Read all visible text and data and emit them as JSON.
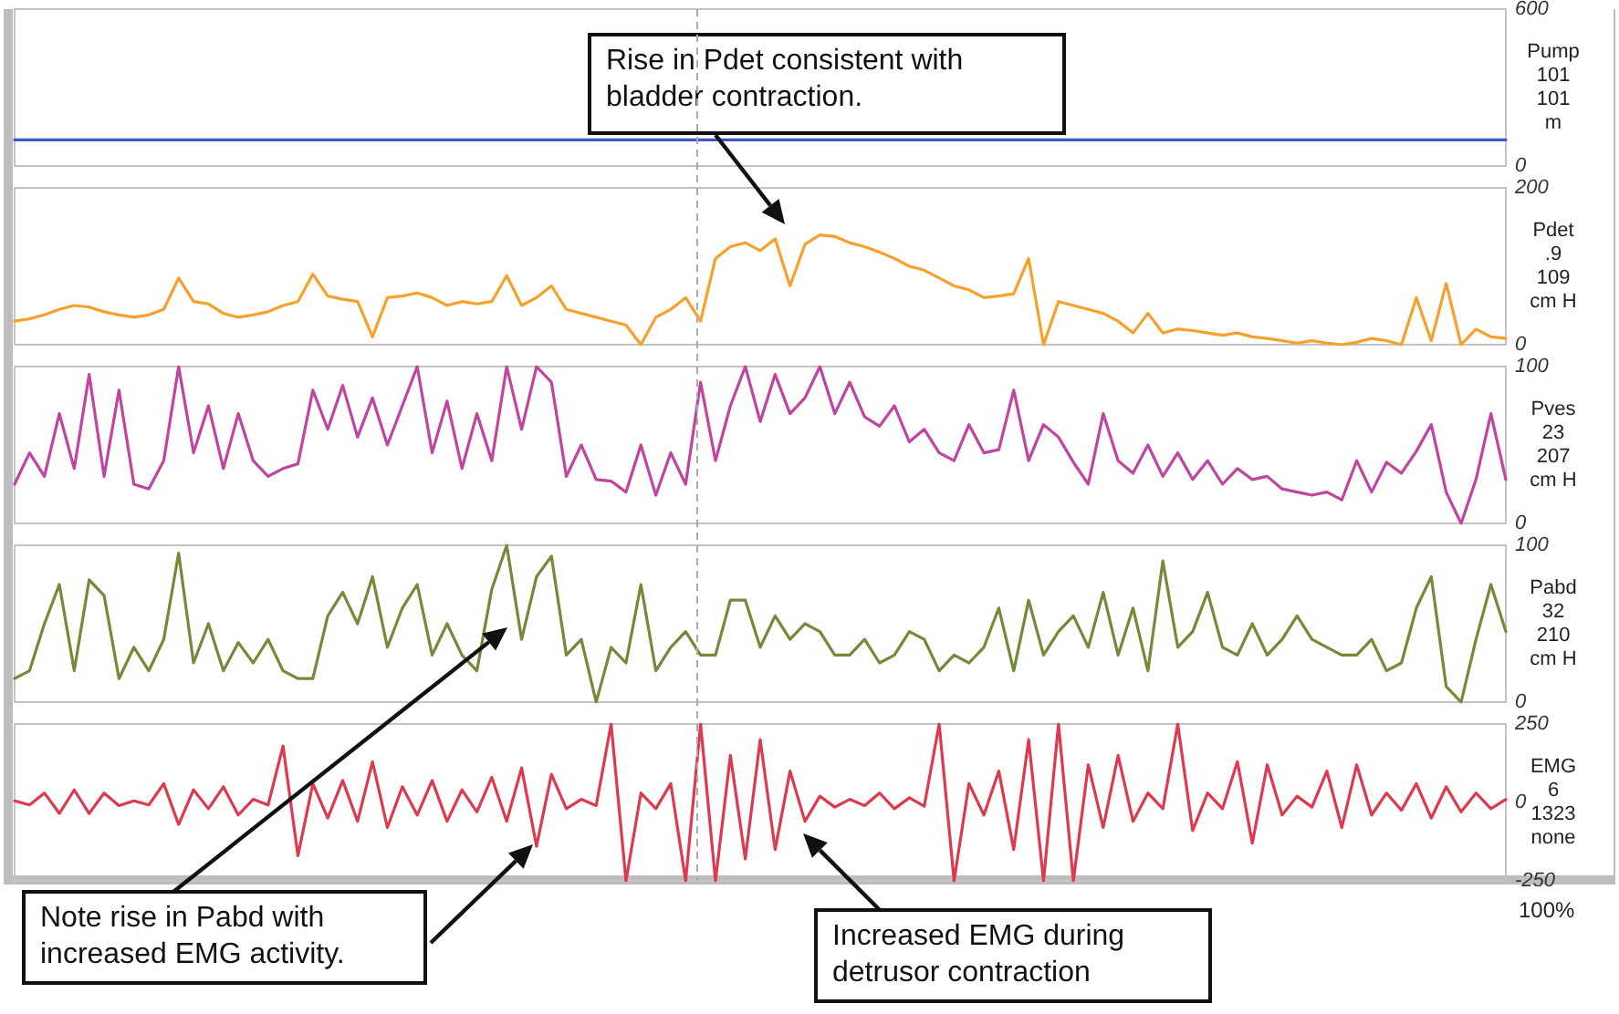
{
  "chart_data": [
    {
      "type": "line",
      "categories": [
        null,
        null,
        null,
        null,
        null,
        null,
        null,
        null,
        null,
        null,
        null,
        null,
        null,
        null,
        null,
        null,
        null,
        null,
        null,
        null,
        null,
        null,
        null,
        null,
        null,
        null,
        null,
        null,
        null,
        null,
        null,
        null,
        null,
        null,
        null,
        null,
        null,
        null,
        null,
        null,
        null,
        null,
        null,
        null,
        null,
        null,
        null,
        null,
        null,
        null,
        null,
        null,
        null,
        null,
        null,
        null,
        null,
        null,
        null,
        null,
        null,
        null,
        null,
        null,
        null,
        null,
        null,
        null,
        null,
        null,
        null,
        null,
        null,
        null,
        null,
        null,
        null,
        null,
        null,
        null,
        null,
        null,
        null,
        null,
        null,
        null,
        null,
        null,
        null,
        null,
        null,
        null,
        null,
        null,
        null,
        null,
        null,
        null,
        null,
        null,
        null
      ],
      "values": [
        100,
        100,
        100,
        100,
        100,
        100,
        100,
        100,
        100,
        100,
        100,
        100,
        100,
        100,
        100,
        100,
        100,
        100,
        100,
        100,
        100,
        100,
        100,
        100,
        100,
        100,
        100,
        100,
        100,
        100,
        100,
        100,
        100,
        100,
        100,
        100,
        100,
        100,
        100,
        100,
        100,
        100,
        100,
        100,
        100,
        100,
        100,
        100,
        100,
        100,
        100,
        100,
        100,
        100,
        100,
        100,
        100,
        100,
        100,
        100,
        100,
        100,
        100,
        100,
        100,
        100,
        100,
        100,
        100,
        100,
        100,
        100,
        100,
        100,
        100,
        100,
        100,
        100,
        100,
        100,
        100,
        100,
        100,
        100,
        100,
        100,
        100,
        100,
        100,
        100,
        100,
        100,
        100,
        100,
        100,
        100,
        100,
        100,
        100,
        100,
        100
      ],
      "color": "#3b57c4",
      "ylim": [
        0,
        600
      ],
      "yticks": [
        0,
        600
      ],
      "ylabel": "Pump\n101\n101\nm",
      "tick_labels": "y",
      "marker": "none",
      "line_style": "solid"
    },
    {
      "type": "line",
      "categories": [
        null,
        null,
        null,
        null,
        null,
        null,
        null,
        null,
        null,
        null,
        null,
        null,
        null,
        null,
        null,
        null,
        null,
        null,
        null,
        null,
        null,
        null,
        null,
        null,
        null,
        null,
        null,
        null,
        null,
        null,
        null,
        null,
        null,
        null,
        null,
        null,
        null,
        null,
        null,
        null,
        null,
        null,
        null,
        null,
        null,
        null,
        null,
        null,
        null,
        null,
        null,
        null,
        null,
        null,
        null,
        null,
        null,
        null,
        null,
        null,
        null,
        null,
        null,
        null,
        null,
        null,
        null,
        null,
        null,
        null,
        null,
        null,
        null,
        null,
        null,
        null,
        null,
        null,
        null,
        null,
        null,
        null,
        null,
        null,
        null,
        null,
        null,
        null,
        null,
        null,
        null,
        null,
        null,
        null,
        null,
        null,
        null,
        null,
        null,
        null,
        null
      ],
      "values": [
        30,
        33,
        38,
        45,
        50,
        48,
        42,
        38,
        35,
        38,
        45,
        85,
        55,
        52,
        40,
        35,
        38,
        42,
        50,
        55,
        90,
        62,
        58,
        55,
        10,
        60,
        62,
        66,
        60,
        50,
        55,
        52,
        55,
        88,
        50,
        60,
        75,
        45,
        40,
        35,
        30,
        25,
        0,
        35,
        45,
        60,
        30,
        110,
        125,
        130,
        120,
        135,
        75,
        128,
        140,
        138,
        130,
        125,
        118,
        110,
        100,
        95,
        85,
        75,
        70,
        60,
        62,
        65,
        110,
        0,
        55,
        50,
        45,
        40,
        30,
        15,
        40,
        15,
        20,
        18,
        15,
        12,
        15,
        10,
        8,
        5,
        2,
        5,
        2,
        0,
        3,
        8,
        5,
        0,
        60,
        5,
        78,
        0,
        20,
        10,
        8
      ],
      "color": "#f7a02c",
      "ylim": [
        0,
        200
      ],
      "yticks": [
        0,
        200
      ],
      "ylabel": "Pdet\n.9\n109\ncm H",
      "tick_labels": "y",
      "marker": "none",
      "line_style": "solid",
      "annotations": [
        "Rise in Pdet consistent with bladder contraction."
      ]
    },
    {
      "type": "line",
      "categories": [
        null,
        null,
        null,
        null,
        null,
        null,
        null,
        null,
        null,
        null,
        null,
        null,
        null,
        null,
        null,
        null,
        null,
        null,
        null,
        null,
        null,
        null,
        null,
        null,
        null,
        null,
        null,
        null,
        null,
        null,
        null,
        null,
        null,
        null,
        null,
        null,
        null,
        null,
        null,
        null,
        null,
        null,
        null,
        null,
        null,
        null,
        null,
        null,
        null,
        null,
        null,
        null,
        null,
        null,
        null,
        null,
        null,
        null,
        null,
        null,
        null,
        null,
        null,
        null,
        null,
        null,
        null,
        null,
        null,
        null,
        null,
        null,
        null,
        null,
        null,
        null,
        null,
        null,
        null,
        null,
        null,
        null,
        null,
        null,
        null,
        null,
        null,
        null,
        null,
        null,
        null,
        null,
        null,
        null,
        null,
        null,
        null,
        null,
        null,
        null,
        null
      ],
      "values": [
        25,
        45,
        30,
        70,
        35,
        95,
        30,
        85,
        25,
        22,
        40,
        100,
        45,
        75,
        35,
        70,
        40,
        30,
        35,
        38,
        85,
        60,
        88,
        55,
        80,
        50,
        75,
        100,
        45,
        78,
        35,
        70,
        40,
        100,
        60,
        100,
        90,
        30,
        50,
        28,
        27,
        20,
        50,
        18,
        45,
        25,
        90,
        40,
        75,
        100,
        65,
        95,
        70,
        80,
        100,
        70,
        90,
        68,
        62,
        75,
        52,
        60,
        45,
        40,
        63,
        45,
        47,
        85,
        40,
        63,
        55,
        39,
        25,
        70,
        40,
        32,
        50,
        30,
        45,
        28,
        40,
        25,
        35,
        28,
        30,
        22,
        20,
        18,
        20,
        15,
        40,
        20,
        39,
        32,
        46,
        63,
        20,
        0,
        28,
        70,
        28
      ],
      "color": "#c044a0",
      "ylim": [
        0,
        100
      ],
      "yticks": [
        0,
        100
      ],
      "ylabel": "Pves\n23\n207\ncm H",
      "tick_labels": "y",
      "marker": "none",
      "line_style": "solid"
    },
    {
      "type": "line",
      "categories": [
        null,
        null,
        null,
        null,
        null,
        null,
        null,
        null,
        null,
        null,
        null,
        null,
        null,
        null,
        null,
        null,
        null,
        null,
        null,
        null,
        null,
        null,
        null,
        null,
        null,
        null,
        null,
        null,
        null,
        null,
        null,
        null,
        null,
        null,
        null,
        null,
        null,
        null,
        null,
        null,
        null,
        null,
        null,
        null,
        null,
        null,
        null,
        null,
        null,
        null,
        null,
        null,
        null,
        null,
        null,
        null,
        null,
        null,
        null,
        null,
        null,
        null,
        null,
        null,
        null,
        null,
        null,
        null,
        null,
        null,
        null,
        null,
        null,
        null,
        null,
        null,
        null,
        null,
        null,
        null,
        null,
        null,
        null,
        null,
        null,
        null,
        null,
        null,
        null,
        null,
        null,
        null,
        null,
        null,
        null,
        null,
        null,
        null,
        null,
        null,
        null
      ],
      "values": [
        15,
        20,
        50,
        75,
        20,
        78,
        68,
        15,
        35,
        20,
        40,
        95,
        25,
        50,
        20,
        38,
        25,
        40,
        20,
        15,
        15,
        55,
        70,
        50,
        80,
        35,
        60,
        75,
        30,
        50,
        30,
        20,
        72,
        100,
        40,
        80,
        93,
        30,
        40,
        0,
        35,
        25,
        75,
        20,
        35,
        45,
        30,
        30,
        65,
        65,
        35,
        55,
        40,
        50,
        45,
        30,
        30,
        40,
        25,
        30,
        45,
        40,
        20,
        30,
        25,
        35,
        60,
        20,
        65,
        30,
        45,
        55,
        35,
        70,
        30,
        60,
        20,
        90,
        35,
        45,
        70,
        35,
        30,
        50,
        30,
        40,
        55,
        40,
        35,
        30,
        30,
        40,
        20,
        25,
        60,
        80,
        10,
        0,
        40,
        75,
        45
      ],
      "color": "#748a38",
      "ylim": [
        0,
        100
      ],
      "yticks": [
        0,
        100
      ],
      "ylabel": "Pabd\n32\n210\ncm H",
      "tick_labels": "y",
      "marker": "none",
      "line_style": "solid",
      "annotations": [
        "Note rise in Pabd with increased EMG activity."
      ]
    },
    {
      "type": "line",
      "categories": [
        null,
        null,
        null,
        null,
        null,
        null,
        null,
        null,
        null,
        null,
        null,
        null,
        null,
        null,
        null,
        null,
        null,
        null,
        null,
        null,
        null,
        null,
        null,
        null,
        null,
        null,
        null,
        null,
        null,
        null,
        null,
        null,
        null,
        null,
        null,
        null,
        null,
        null,
        null,
        null,
        null,
        null,
        null,
        null,
        null,
        null,
        null,
        null,
        null,
        null,
        null,
        null,
        null,
        null,
        null,
        null,
        null,
        null,
        null,
        null,
        null,
        null,
        null,
        null,
        null,
        null,
        null,
        null,
        null,
        null,
        null,
        null,
        null,
        null,
        null,
        null,
        null,
        null,
        null,
        null,
        null,
        null,
        null,
        null,
        null,
        null,
        null,
        null,
        null,
        null,
        null,
        null,
        null,
        null,
        null,
        null,
        null,
        null,
        null,
        null,
        null
      ],
      "values": [
        5,
        -8,
        30,
        -35,
        40,
        -35,
        30,
        -10,
        5,
        -8,
        60,
        -70,
        40,
        -20,
        50,
        -40,
        10,
        -8,
        180,
        -170,
        60,
        -50,
        70,
        -60,
        130,
        -80,
        50,
        -40,
        70,
        -60,
        40,
        -30,
        80,
        -60,
        110,
        -140,
        90,
        -20,
        10,
        -10,
        250,
        -250,
        30,
        -20,
        60,
        -250,
        250,
        -250,
        150,
        -180,
        200,
        -150,
        100,
        -60,
        20,
        -15,
        10,
        -10,
        30,
        -20,
        15,
        -12,
        250,
        -250,
        60,
        -40,
        100,
        -150,
        200,
        -250,
        250,
        -250,
        120,
        -80,
        150,
        -60,
        30,
        -20,
        250,
        -90,
        30,
        -20,
        130,
        -130,
        120,
        -40,
        20,
        -15,
        100,
        -80,
        120,
        -40,
        30,
        -25,
        60,
        -50,
        50,
        -30,
        30,
        -20,
        10
      ],
      "color": "#dd3a4f",
      "ylim": [
        -250,
        250
      ],
      "yticks": [
        -250,
        0,
        250
      ],
      "ylabel": "EMG\n6\n1323\nnone",
      "tick_labels": "y",
      "marker": "none",
      "line_style": "solid",
      "annotations": [
        "Increased EMG during detrusor contraction",
        "100%"
      ]
    }
  ]
}
